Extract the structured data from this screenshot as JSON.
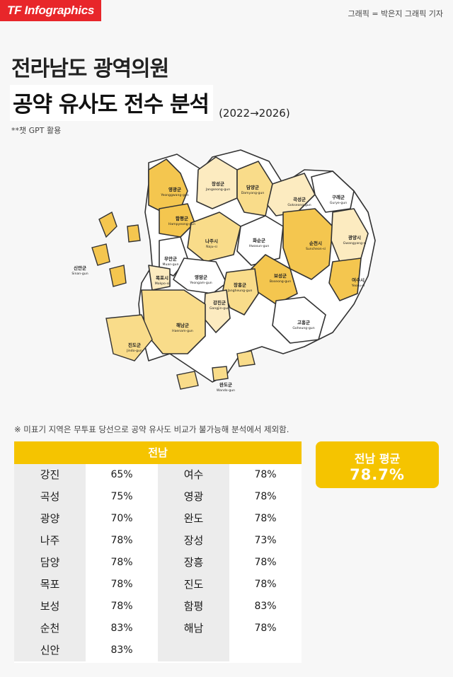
{
  "brand": "TF Infographics",
  "credit": "그래픽 = 박은지 그래픽 기자",
  "title_line1": "전라남도 광역의원",
  "title_line2": "공약 유사도 전수 분석",
  "title_period": "(2022→2026)",
  "gpt_note": "**챗 GPT 활용",
  "map_labels": [
    {
      "ko": "영광군",
      "en": "Yeonggwang-gun"
    },
    {
      "ko": "장성군",
      "en": "Jangseong-gun"
    },
    {
      "ko": "담양군",
      "en": "Damyang-gun"
    },
    {
      "ko": "곡성군",
      "en": "Gokseong-gun"
    },
    {
      "ko": "구례군",
      "en": "Gurye-gun"
    },
    {
      "ko": "함평군",
      "en": "Hampyeong-gun"
    },
    {
      "ko": "나주시",
      "en": "Naju-si"
    },
    {
      "ko": "화순군",
      "en": "Hwasun-gun"
    },
    {
      "ko": "순천시",
      "en": "Suncheon-si"
    },
    {
      "ko": "광양시",
      "en": "Gwangyang-si"
    },
    {
      "ko": "신안군",
      "en": "Sinan-gun"
    },
    {
      "ko": "무안군",
      "en": "Muan-gun"
    },
    {
      "ko": "목포시",
      "en": "Mokpo-si"
    },
    {
      "ko": "영암군",
      "en": "Yeongam-gun"
    },
    {
      "ko": "보성군",
      "en": "Boseong-gun"
    },
    {
      "ko": "장흥군",
      "en": "Jangheung-gun"
    },
    {
      "ko": "여수시",
      "en": "Yeosu-si"
    },
    {
      "ko": "강진군",
      "en": "Gangjin-gun"
    },
    {
      "ko": "해남군",
      "en": "Haenam-gun"
    },
    {
      "ko": "고흥군",
      "en": "Goheung-gun"
    },
    {
      "ko": "진도군",
      "en": "Jindo-gun"
    },
    {
      "ko": "완도군",
      "en": "Wando-gun"
    }
  ],
  "exclusion_note": "※ 미표기 지역은 무투표 당선으로 공약 유사도 비교가 불가능해 분석에서 제외함.",
  "table_header": "전남",
  "left_rows": [
    {
      "name": "강진",
      "value": "65%"
    },
    {
      "name": "곡성",
      "value": "75%"
    },
    {
      "name": "광양",
      "value": "70%"
    },
    {
      "name": "나주",
      "value": "78%"
    },
    {
      "name": "담양",
      "value": "78%"
    },
    {
      "name": "목포",
      "value": "78%"
    },
    {
      "name": "보성",
      "value": "78%"
    },
    {
      "name": "순천",
      "value": "83%"
    },
    {
      "name": "신안",
      "value": "83%"
    }
  ],
  "right_rows": [
    {
      "name": "여수",
      "value": "78%"
    },
    {
      "name": "영광",
      "value": "78%"
    },
    {
      "name": "완도",
      "value": "78%"
    },
    {
      "name": "장성",
      "value": "73%"
    },
    {
      "name": "장흥",
      "value": "78%"
    },
    {
      "name": "진도",
      "value": "78%"
    },
    {
      "name": "함평",
      "value": "83%"
    },
    {
      "name": "해남",
      "value": "78%"
    }
  ],
  "average_label": "전남 평균",
  "average_value": "78.7%",
  "colors": {
    "brand_red": "#e8262a",
    "accent_yellow": "#f5c400",
    "high": "#f4c64f",
    "mid": "#f9dc8a",
    "low": "#fcebc0",
    "none": "#ffffff"
  }
}
